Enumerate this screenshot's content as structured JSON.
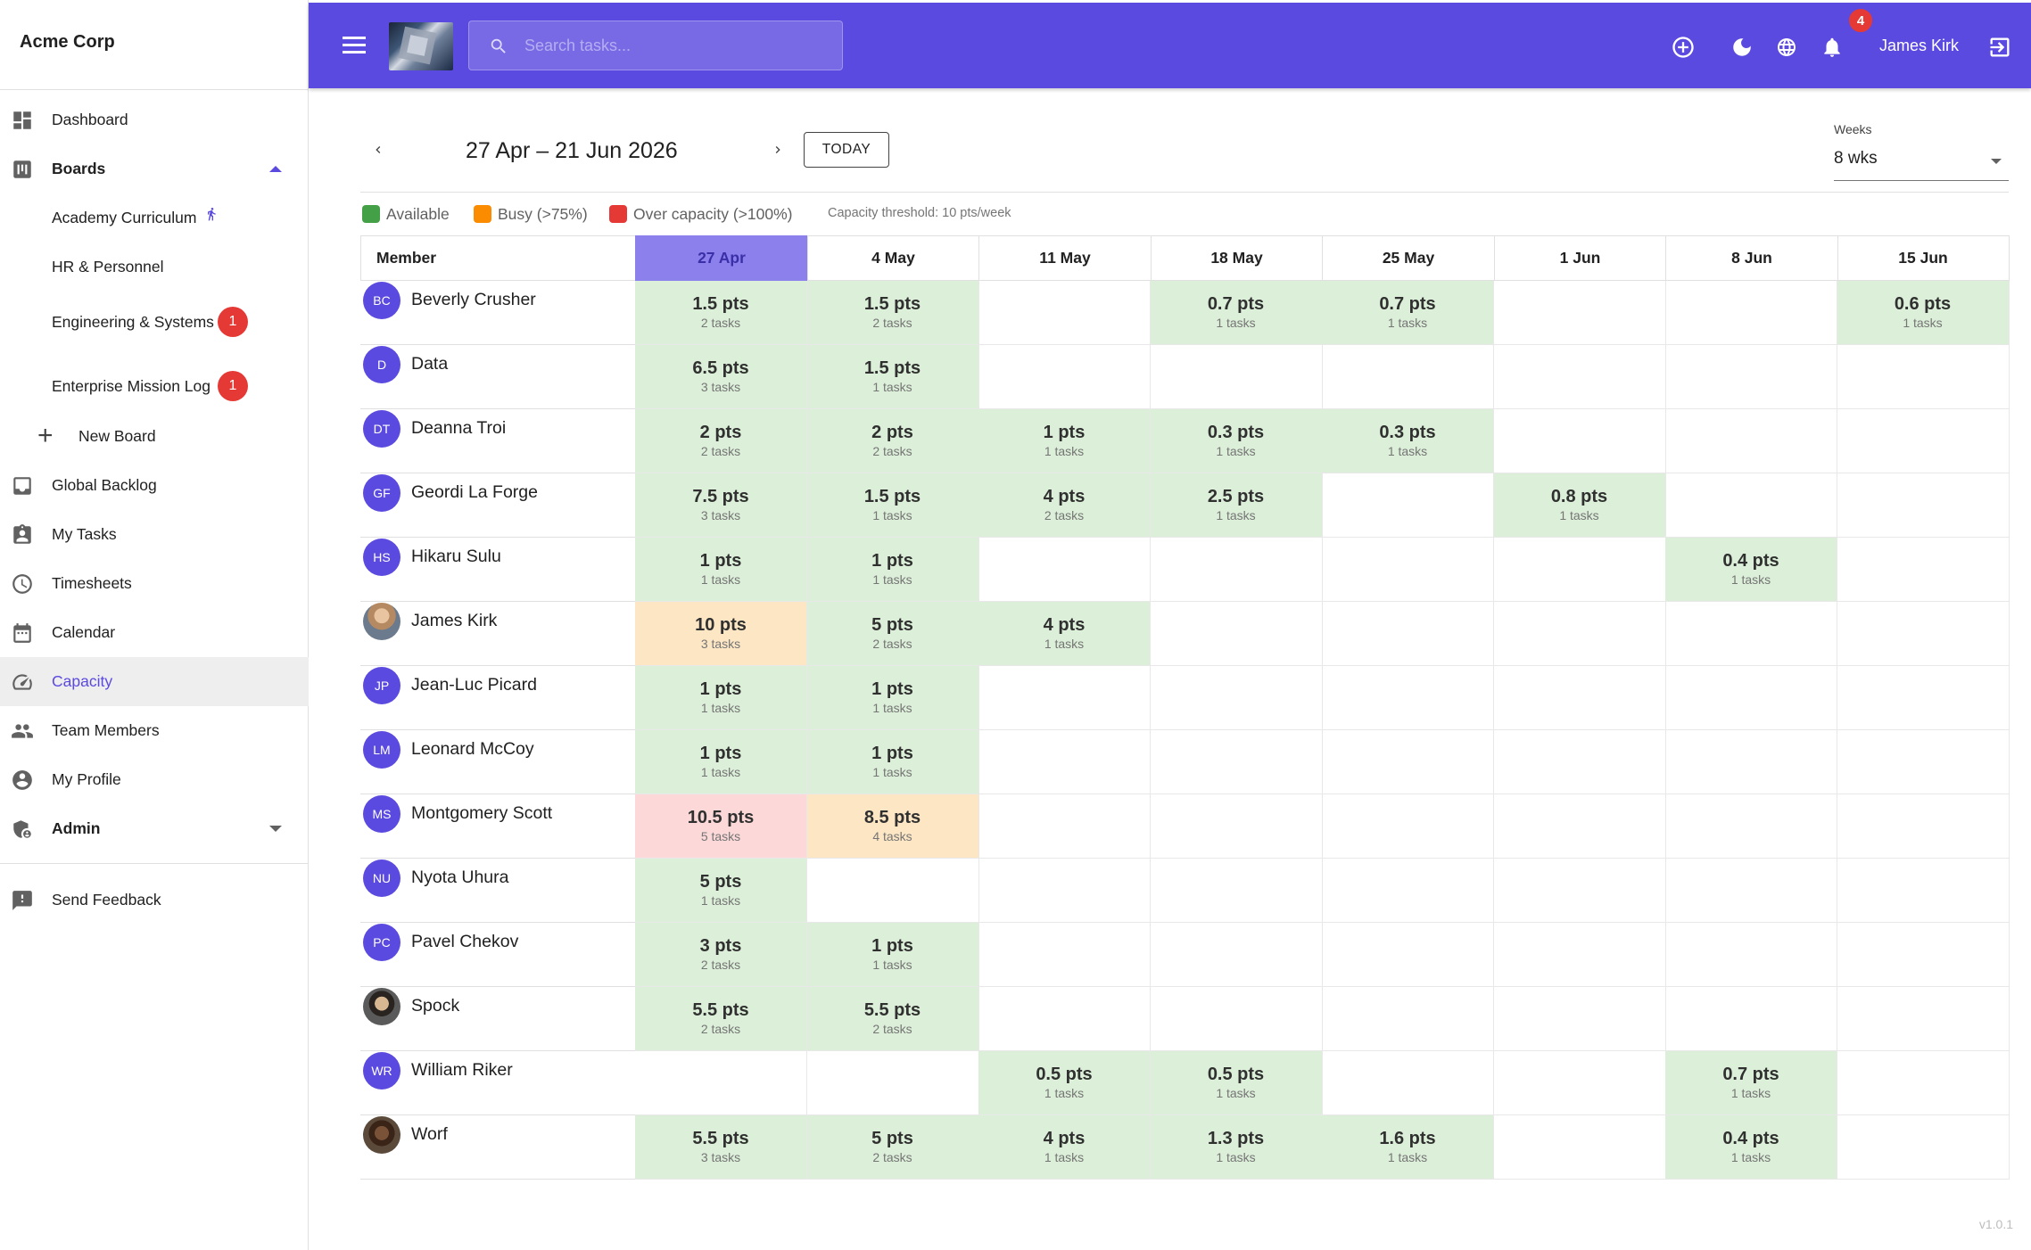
{
  "app": {
    "name": "Acme Corp",
    "version": "v1.0.1"
  },
  "sidebar": {
    "items": [
      {
        "key": "dashboard",
        "label": "Dashboard",
        "icon": "dashboard-icon"
      },
      {
        "key": "boards",
        "label": "Boards",
        "icon": "board-icon",
        "expanded": true
      },
      {
        "key": "global-backlog",
        "label": "Global Backlog",
        "icon": "inbox-icon"
      },
      {
        "key": "my-tasks",
        "label": "My Tasks",
        "icon": "assignment-icon"
      },
      {
        "key": "timesheets",
        "label": "Timesheets",
        "icon": "clock-icon"
      },
      {
        "key": "calendar",
        "label": "Calendar",
        "icon": "calendar-icon"
      },
      {
        "key": "capacity",
        "label": "Capacity",
        "icon": "speedometer-icon",
        "active": true
      },
      {
        "key": "team-members",
        "label": "Team Members",
        "icon": "people-icon"
      },
      {
        "key": "my-profile",
        "label": "My Profile",
        "icon": "account-circle-icon"
      },
      {
        "key": "admin",
        "label": "Admin",
        "icon": "admin-shield-icon",
        "expanded": false
      },
      {
        "key": "send-feedback",
        "label": "Send Feedback",
        "icon": "feedback-icon"
      }
    ],
    "boards": [
      {
        "label": "Academy Curriculum",
        "icon": "running-person-icon"
      },
      {
        "label": "HR & Personnel"
      },
      {
        "label": "Engineering & Systems",
        "badge": "1"
      },
      {
        "label": "Enterprise Mission Log",
        "badge": "1"
      }
    ],
    "new_board_label": "New Board"
  },
  "topbar": {
    "search_placeholder": "Search tasks...",
    "notification_count": "4",
    "user_name": "James Kirk",
    "icons": [
      "add-circle-icon",
      "dark-mode-icon",
      "globe-icon",
      "bell-icon",
      "logout-icon"
    ],
    "accent": "#5b4ae0"
  },
  "capacity": {
    "range": "27 Apr – 21 Jun 2026",
    "today_label": "TODAY",
    "weeks_label": "Weeks",
    "weeks_value": "8 wks",
    "legend": [
      {
        "label": "Available",
        "color": "#43a047"
      },
      {
        "label": "Busy (>75%)",
        "color": "#fb8c00"
      },
      {
        "label": "Over capacity (>100%)",
        "color": "#e53935"
      }
    ],
    "threshold": "Capacity threshold: 10 pts/week",
    "member_header": "Member",
    "weeks": [
      "27 Apr",
      "4 May",
      "11 May",
      "18 May",
      "25 May",
      "1 Jun",
      "8 Jun",
      "15 Jun"
    ],
    "current_week_index": 0,
    "members": [
      {
        "name": "Beverly Crusher",
        "initials": "BC",
        "cells": [
          [
            "1.5 pts",
            "2 tasks",
            "g"
          ],
          [
            "1.5 pts",
            "2 tasks",
            "g"
          ],
          null,
          [
            "0.7 pts",
            "1 tasks",
            "g"
          ],
          [
            "0.7 pts",
            "1 tasks",
            "g"
          ],
          null,
          null,
          [
            "0.6 pts",
            "1 tasks",
            "g"
          ]
        ]
      },
      {
        "name": "Data",
        "initials": "D",
        "cells": [
          [
            "6.5 pts",
            "3 tasks",
            "g"
          ],
          [
            "1.5 pts",
            "1 tasks",
            "g"
          ],
          null,
          null,
          null,
          null,
          null,
          null
        ]
      },
      {
        "name": "Deanna Troi",
        "initials": "DT",
        "cells": [
          [
            "2 pts",
            "2 tasks",
            "g"
          ],
          [
            "2 pts",
            "2 tasks",
            "g"
          ],
          [
            "1 pts",
            "1 tasks",
            "g"
          ],
          [
            "0.3 pts",
            "1 tasks",
            "g"
          ],
          [
            "0.3 pts",
            "1 tasks",
            "g"
          ],
          null,
          null,
          null
        ]
      },
      {
        "name": "Geordi La Forge",
        "initials": "GF",
        "cells": [
          [
            "7.5 pts",
            "3 tasks",
            "g"
          ],
          [
            "1.5 pts",
            "1 tasks",
            "g"
          ],
          [
            "4 pts",
            "2 tasks",
            "g"
          ],
          [
            "2.5 pts",
            "1 tasks",
            "g"
          ],
          null,
          [
            "0.8 pts",
            "1 tasks",
            "g"
          ],
          null,
          null
        ]
      },
      {
        "name": "Hikaru Sulu",
        "initials": "HS",
        "cells": [
          [
            "1 pts",
            "1 tasks",
            "g"
          ],
          [
            "1 pts",
            "1 tasks",
            "g"
          ],
          null,
          null,
          null,
          null,
          [
            "0.4 pts",
            "1 tasks",
            "g"
          ],
          null
        ]
      },
      {
        "name": "James Kirk",
        "initials": "",
        "photo": "kirk",
        "cells": [
          [
            "10 pts",
            "3 tasks",
            "o"
          ],
          [
            "5 pts",
            "2 tasks",
            "g"
          ],
          [
            "4 pts",
            "1 tasks",
            "g"
          ],
          null,
          null,
          null,
          null,
          null
        ]
      },
      {
        "name": "Jean-Luc Picard",
        "initials": "JP",
        "cells": [
          [
            "1 pts",
            "1 tasks",
            "g"
          ],
          [
            "1 pts",
            "1 tasks",
            "g"
          ],
          null,
          null,
          null,
          null,
          null,
          null
        ]
      },
      {
        "name": "Leonard McCoy",
        "initials": "LM",
        "cells": [
          [
            "1 pts",
            "1 tasks",
            "g"
          ],
          [
            "1 pts",
            "1 tasks",
            "g"
          ],
          null,
          null,
          null,
          null,
          null,
          null
        ]
      },
      {
        "name": "Montgomery Scott",
        "initials": "MS",
        "cells": [
          [
            "10.5 pts",
            "5 tasks",
            "r"
          ],
          [
            "8.5 pts",
            "4 tasks",
            "o"
          ],
          null,
          null,
          null,
          null,
          null,
          null
        ]
      },
      {
        "name": "Nyota Uhura",
        "initials": "NU",
        "cells": [
          [
            "5 pts",
            "1 tasks",
            "g"
          ],
          null,
          null,
          null,
          null,
          null,
          null,
          null
        ]
      },
      {
        "name": "Pavel Chekov",
        "initials": "PC",
        "cells": [
          [
            "3 pts",
            "2 tasks",
            "g"
          ],
          [
            "1 pts",
            "1 tasks",
            "g"
          ],
          null,
          null,
          null,
          null,
          null,
          null
        ]
      },
      {
        "name": "Spock",
        "initials": "",
        "photo": "spock",
        "cells": [
          [
            "5.5 pts",
            "2 tasks",
            "g"
          ],
          [
            "5.5 pts",
            "2 tasks",
            "g"
          ],
          null,
          null,
          null,
          null,
          null,
          null
        ]
      },
      {
        "name": "William Riker",
        "initials": "WR",
        "cells": [
          null,
          null,
          [
            "0.5 pts",
            "1 tasks",
            "g"
          ],
          [
            "0.5 pts",
            "1 tasks",
            "g"
          ],
          null,
          null,
          [
            "0.7 pts",
            "1 tasks",
            "g"
          ],
          null
        ]
      },
      {
        "name": "Worf",
        "initials": "",
        "photo": "worf",
        "cells": [
          [
            "5.5 pts",
            "3 tasks",
            "g"
          ],
          [
            "5 pts",
            "2 tasks",
            "g"
          ],
          [
            "4 pts",
            "1 tasks",
            "g"
          ],
          [
            "1.3 pts",
            "1 tasks",
            "g"
          ],
          [
            "1.6 pts",
            "1 tasks",
            "g"
          ],
          null,
          [
            "0.4 pts",
            "1 tasks",
            "g"
          ],
          null
        ]
      }
    ]
  }
}
